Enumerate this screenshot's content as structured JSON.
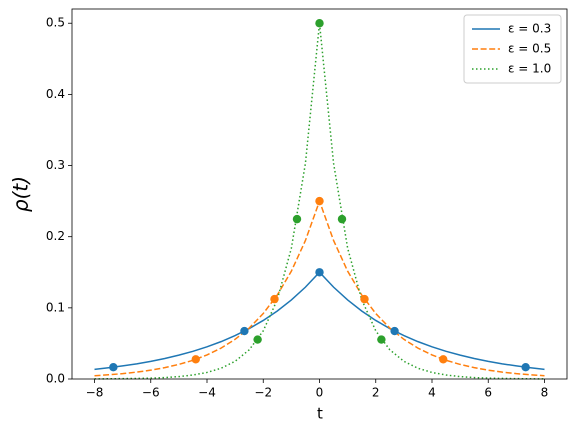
{
  "chart_data": {
    "type": "line",
    "xlabel": "t",
    "ylabel": "ρ(t)",
    "xlim": [
      -8.8,
      8.8
    ],
    "ylim": [
      0,
      0.52
    ],
    "xticks": [
      {
        "value": -8,
        "label": "−8"
      },
      {
        "value": -6,
        "label": "−6"
      },
      {
        "value": -4,
        "label": "−4"
      },
      {
        "value": -2,
        "label": "−2"
      },
      0,
      2,
      4,
      6,
      8
    ],
    "yticks": [
      {
        "value": 0,
        "label": "0.0"
      },
      0.1,
      0.2,
      0.3,
      0.4,
      0.5
    ],
    "legend": "upper right",
    "x": [
      -8,
      -7.5,
      -7,
      -6.5,
      -6,
      -5.5,
      -5,
      -4.5,
      -4,
      -3.5,
      -3,
      -2.5,
      -2,
      -1.5,
      -1,
      -0.5,
      0,
      0.5,
      1,
      1.5,
      2,
      2.5,
      3,
      3.5,
      4,
      4.5,
      5,
      5.5,
      6,
      6.5,
      7,
      7.5,
      8
    ],
    "series": [
      {
        "name": "ε = 0.3",
        "color": "#1f77b4",
        "dash": "solid",
        "values": [
          0.0136,
          0.0158,
          0.0184,
          0.0213,
          0.0248,
          0.0288,
          0.0335,
          0.0389,
          0.0452,
          0.0525,
          0.061,
          0.0709,
          0.0823,
          0.0956,
          0.1111,
          0.1291,
          0.15,
          0.1291,
          0.1111,
          0.0956,
          0.0823,
          0.0709,
          0.061,
          0.0525,
          0.0452,
          0.0389,
          0.0335,
          0.0288,
          0.0248,
          0.0213,
          0.0184,
          0.0158,
          0.0136
        ]
      },
      {
        "name": "ε = 0.5",
        "color": "#ff7f0e",
        "dash": "dashed",
        "values": [
          0.0046,
          0.0059,
          0.0075,
          0.0097,
          0.0124,
          0.016,
          0.0205,
          0.0263,
          0.0338,
          0.0434,
          0.0558,
          0.0716,
          0.092,
          0.1181,
          0.1516,
          0.1947,
          0.25,
          0.1947,
          0.1516,
          0.1181,
          0.092,
          0.0716,
          0.0558,
          0.0434,
          0.0338,
          0.0263,
          0.0205,
          0.016,
          0.0124,
          0.0097,
          0.0075,
          0.0059,
          0.0046
        ]
      },
      {
        "name": "ε = 1.0",
        "color": "#2ca02c",
        "dash": "dotted",
        "values": [
          0.0002,
          0.0003,
          0.0005,
          0.0008,
          0.0012,
          0.002,
          0.0034,
          0.0056,
          0.0092,
          0.0151,
          0.0249,
          0.041,
          0.0677,
          0.1116,
          0.1839,
          0.3033,
          0.5,
          0.3033,
          0.1839,
          0.1116,
          0.0677,
          0.041,
          0.0249,
          0.0151,
          0.0092,
          0.0056,
          0.0034,
          0.002,
          0.0012,
          0.0008,
          0.0005,
          0.0003,
          0.0002
        ]
      }
    ],
    "markers": [
      {
        "color": "#1f77b4",
        "x": [
          -7.33,
          -2.67,
          0,
          2.67,
          7.33
        ],
        "values": [
          0.0166,
          0.0674,
          0.15,
          0.0674,
          0.0166
        ]
      },
      {
        "color": "#ff7f0e",
        "x": [
          -4.4,
          -1.6,
          0,
          1.6,
          4.4
        ],
        "values": [
          0.0277,
          0.1123,
          0.25,
          0.1123,
          0.0277
        ]
      },
      {
        "color": "#2ca02c",
        "x": [
          -2.2,
          -0.8,
          0,
          0.8,
          2.2
        ],
        "values": [
          0.0554,
          0.2247,
          0.5,
          0.2247,
          0.0554
        ]
      }
    ]
  }
}
